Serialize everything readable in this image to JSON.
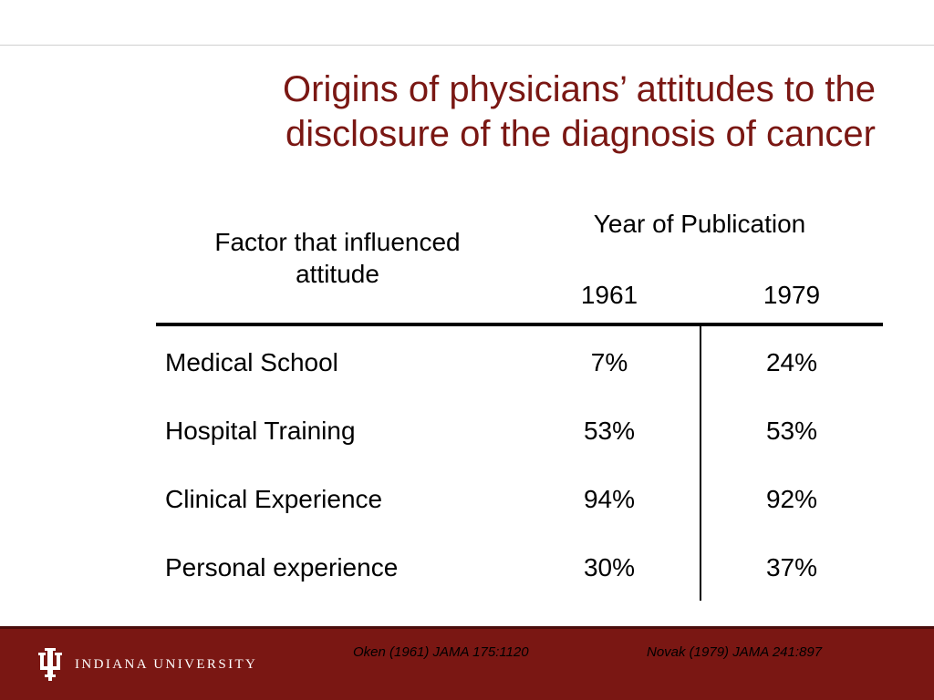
{
  "slide": {
    "title_lines": [
      "Origins of physicians’ attitudes to the",
      "disclosure of the diagnosis of cancer"
    ]
  },
  "table": {
    "factor_header_lines": [
      "Factor that influenced",
      "attitude"
    ],
    "year_header": "Year of Publication",
    "years": [
      "1961",
      "1979"
    ],
    "rows": [
      {
        "factor": "Medical School",
        "values": [
          "7%",
          "24%"
        ]
      },
      {
        "factor": "Hospital Training",
        "values": [
          "53%",
          "53%"
        ]
      },
      {
        "factor": "Clinical Experience",
        "values": [
          "94%",
          "92%"
        ]
      },
      {
        "factor": "Personal experience",
        "values": [
          "30%",
          "37%"
        ]
      }
    ]
  },
  "footer": {
    "logo_text": "INDIANA UNIVERSITY",
    "logo_icon": "iu-trident-icon",
    "citations": [
      "Oken (1961) JAMA 175:1120",
      "Novak (1979) JAMA 241:897"
    ],
    "background_color": "#7a1713",
    "title_color": "#7a1713"
  }
}
